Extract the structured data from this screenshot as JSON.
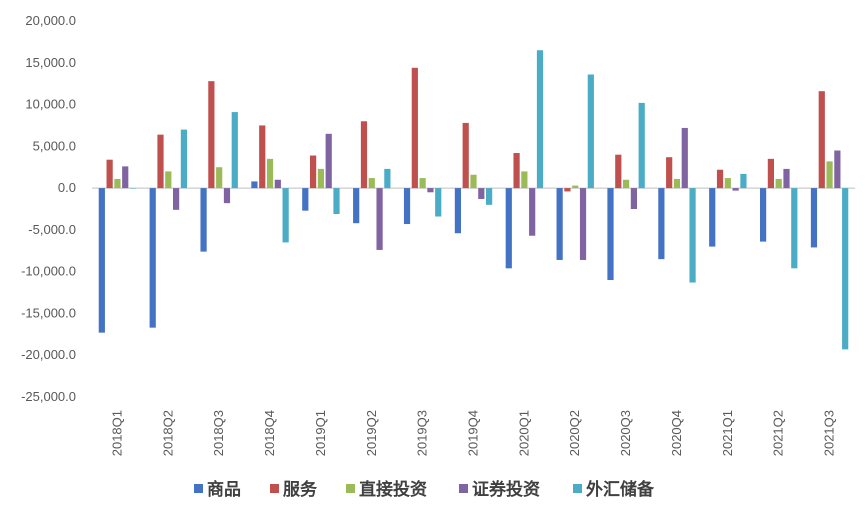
{
  "chart_data": {
    "type": "bar",
    "categories": [
      "2018Q1",
      "2018Q2",
      "2018Q3",
      "2018Q4",
      "2019Q1",
      "2019Q2",
      "2019Q3",
      "2019Q4",
      "2020Q1",
      "2020Q2",
      "2020Q3",
      "2020Q4",
      "2021Q1",
      "2021Q2",
      "2021Q3"
    ],
    "series": [
      {
        "name": "商品",
        "color": "#4472c4",
        "values": [
          -17300,
          -16700,
          -7600,
          800,
          -2700,
          -4200,
          -4300,
          -5400,
          -9600,
          -8600,
          -11000,
          -8500,
          -7000,
          -6400,
          -7100
        ]
      },
      {
        "name": "服务",
        "color": "#c0504d",
        "values": [
          3400,
          6400,
          12800,
          7500,
          3900,
          8000,
          14400,
          7800,
          4200,
          -400,
          4000,
          3700,
          2200,
          3500,
          11600
        ]
      },
      {
        "name": "直接投资",
        "color": "#9bbb59",
        "values": [
          1100,
          2000,
          2500,
          3500,
          2300,
          1200,
          1200,
          1600,
          2000,
          300,
          1000,
          1100,
          1200,
          1100,
          3200
        ]
      },
      {
        "name": "证券投资",
        "color": "#8064a2",
        "values": [
          2600,
          -2600,
          -1800,
          1000,
          6500,
          -7400,
          -500,
          -1300,
          -5700,
          -8600,
          -2500,
          7200,
          -300,
          2300,
          4500
        ]
      },
      {
        "name": "外汇储备",
        "color": "#4bacc6",
        "values": [
          0,
          7000,
          9100,
          -6500,
          -3100,
          2300,
          -3400,
          -2000,
          16500,
          13600,
          10200,
          -11300,
          1700,
          -9600,
          -19300
        ]
      }
    ],
    "y_ticks": [
      "20,000.0",
      "15,000.0",
      "10,000.0",
      "5,000.0",
      "0.0",
      "-5,000.0",
      "-10,000.0",
      "-15,000.0",
      "-20,000.0",
      "-25,000.0"
    ],
    "ylim": [
      -25000,
      20000
    ],
    "legend_position": "bottom",
    "grid": false
  }
}
